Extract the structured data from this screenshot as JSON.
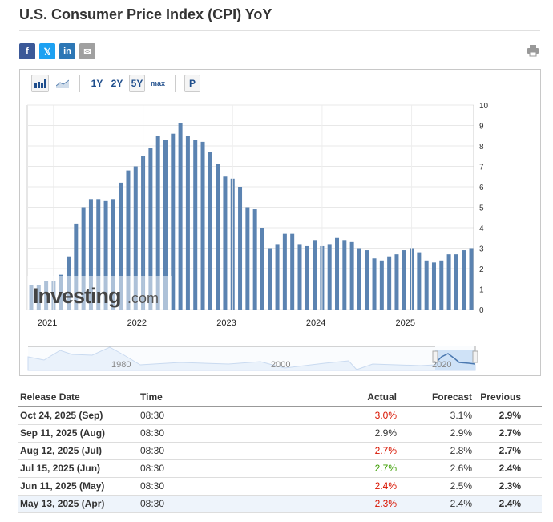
{
  "title": "U.S. Consumer Price Index (CPI) YoY",
  "share": [
    {
      "name": "facebook",
      "glyph": "f",
      "color": "#3b5998"
    },
    {
      "name": "x",
      "glyph": "𝕏",
      "color": "#1da1f2"
    },
    {
      "name": "linkedin",
      "glyph": "in",
      "color": "#2d77b5"
    },
    {
      "name": "email",
      "glyph": "✉",
      "color": "#a0a0a0"
    }
  ],
  "toolbar": {
    "ranges": [
      "1Y",
      "2Y",
      "5Y",
      "max"
    ],
    "selected_range": "5Y",
    "p_label": "P"
  },
  "chart_data": {
    "type": "bar",
    "start": "2020-10",
    "end": "2025-09",
    "frequency": "monthly",
    "values": [
      1.2,
      1.2,
      1.4,
      1.4,
      1.7,
      2.6,
      4.2,
      5.0,
      5.4,
      5.4,
      5.3,
      5.4,
      6.2,
      6.8,
      7.0,
      7.5,
      7.9,
      8.5,
      8.3,
      8.6,
      9.1,
      8.5,
      8.3,
      8.2,
      7.7,
      7.1,
      6.5,
      6.4,
      6.0,
      5.0,
      4.9,
      4.0,
      3.0,
      3.2,
      3.7,
      3.7,
      3.2,
      3.1,
      3.4,
      3.1,
      3.2,
      3.5,
      3.4,
      3.3,
      3.0,
      2.9,
      2.5,
      2.4,
      2.6,
      2.7,
      2.9,
      3.0,
      2.8,
      2.4,
      2.3,
      2.4,
      2.7,
      2.7,
      2.9,
      3.0
    ],
    "xticks": [
      "2021",
      "2022",
      "2023",
      "2024",
      "2025"
    ],
    "yticks": [
      "0",
      "1",
      "2",
      "3",
      "4",
      "5",
      "6",
      "7",
      "8",
      "9",
      "10"
    ],
    "ylim": [
      0,
      10
    ],
    "y_axis": "right",
    "grid": true,
    "bar_color": "#5b83b1",
    "watermark": "Investing.com",
    "navigator_ticks": [
      "1980",
      "2000",
      "2020"
    ]
  },
  "table": {
    "headers": [
      "Release Date",
      "Time",
      "Actual",
      "Forecast",
      "Previous"
    ],
    "rows": [
      {
        "date": "Oct 24, 2025 (Sep)",
        "time": "08:30",
        "actual": "3.0%",
        "actual_color": "#d91400",
        "forecast": "3.1%",
        "previous": "2.9%"
      },
      {
        "date": "Sep 11, 2025 (Aug)",
        "time": "08:30",
        "actual": "2.9%",
        "actual_color": "#333333",
        "forecast": "2.9%",
        "previous": "2.7%"
      },
      {
        "date": "Aug 12, 2025 (Jul)",
        "time": "08:30",
        "actual": "2.7%",
        "actual_color": "#d91400",
        "forecast": "2.8%",
        "previous": "2.7%"
      },
      {
        "date": "Jul 15, 2025 (Jun)",
        "time": "08:30",
        "actual": "2.7%",
        "actual_color": "#3b9e00",
        "forecast": "2.6%",
        "previous": "2.4%"
      },
      {
        "date": "Jun 11, 2025 (May)",
        "time": "08:30",
        "actual": "2.4%",
        "actual_color": "#d91400",
        "forecast": "2.5%",
        "previous": "2.3%"
      },
      {
        "date": "May 13, 2025 (Apr)",
        "time": "08:30",
        "actual": "2.3%",
        "actual_color": "#d91400",
        "forecast": "2.4%",
        "previous": "2.4%"
      }
    ]
  }
}
